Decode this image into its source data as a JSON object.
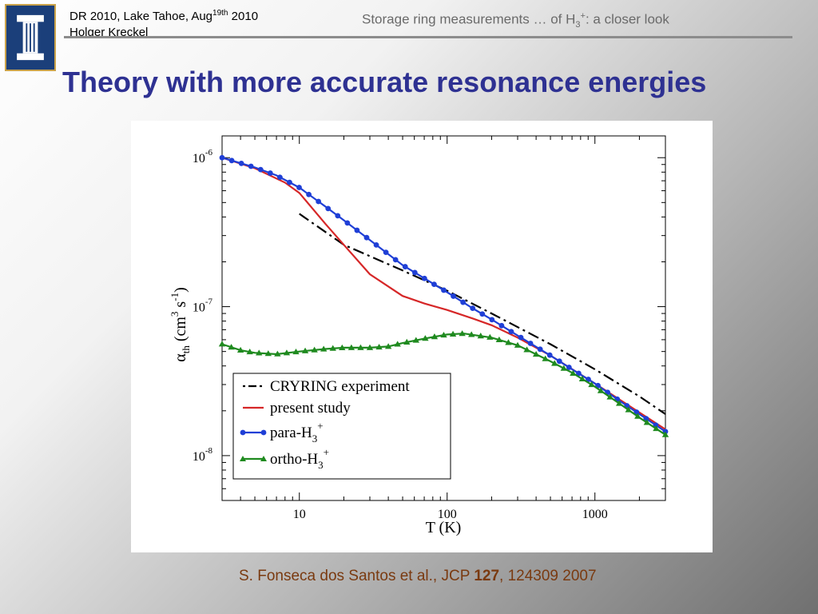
{
  "header": {
    "conference_line": "DR 2010, Lake Tahoe, Aug",
    "conference_sup": "19th",
    "conference_year": " 2010",
    "author": "Holger Kreckel",
    "talk_title_a": "Storage ring measurements … of H",
    "talk_title_sub": "3",
    "talk_title_sup": "+",
    "talk_title_b": ": a closer look",
    "logo_icon": "university-column-logo-icon"
  },
  "slide": {
    "title": "Theory with more accurate resonance energies"
  },
  "citation": {
    "authors": "S. Fonseca dos Santos et al., JCP ",
    "volume": "127",
    "rest": ", 124309 2007"
  },
  "chart_data": {
    "type": "line",
    "xlabel": "T (K)",
    "ylabel_symbol": "α",
    "ylabel_sub": "th",
    "ylabel_units_a": " (cm",
    "ylabel_units_sup1": "3",
    "ylabel_units_b": " s",
    "ylabel_units_sup2": "-1",
    "ylabel_units_c": ")",
    "x_scale": "log",
    "y_scale": "log",
    "xlim": [
      3,
      3000
    ],
    "ylim": [
      5e-09,
      1.4e-06
    ],
    "x_ticks": [
      10,
      100,
      1000
    ],
    "x_tick_labels": [
      "10",
      "100",
      "1000"
    ],
    "y_ticks": [
      1e-08,
      1e-07,
      1e-06
    ],
    "y_tick_base": "10",
    "y_tick_exps": [
      "-8",
      "-7",
      "-6"
    ],
    "legend_position": "bottom-left",
    "series": [
      {
        "name": "CRYRING experiment",
        "color": "#000000",
        "style": "dash-dot",
        "marker": "none",
        "x": [
          10,
          20,
          50,
          100,
          200,
          500,
          1000,
          2000,
          3000
        ],
        "y": [
          4.2e-07,
          2.6e-07,
          1.75e-07,
          1.28e-07,
          9e-08,
          5.6e-08,
          3.8e-08,
          2.5e-08,
          1.9e-08
        ]
      },
      {
        "name": "present study",
        "color": "#d62728",
        "style": "solid",
        "marker": "none",
        "x": [
          3,
          5,
          8,
          10,
          15,
          20,
          30,
          50,
          70,
          100,
          150,
          200,
          300,
          500,
          1000,
          2000,
          3000
        ],
        "y": [
          1e-06,
          8.5e-07,
          6.8e-07,
          5.8e-07,
          3.6e-07,
          2.6e-07,
          1.65e-07,
          1.18e-07,
          1.05e-07,
          9.5e-08,
          8.3e-08,
          7.5e-08,
          6.2e-08,
          4.7e-08,
          3.05e-08,
          1.95e-08,
          1.5e-08
        ]
      },
      {
        "name": "para-H₃⁺",
        "label_base": "para-H",
        "label_sub": "3",
        "label_sup": "+",
        "color": "#1f3fd6",
        "style": "solid",
        "marker": "circle",
        "x": [
          3,
          5,
          7,
          10,
          15,
          20,
          30,
          50,
          70,
          100,
          150,
          200,
          300,
          500,
          700,
          1000,
          1500,
          2000,
          3000
        ],
        "y": [
          1e-06,
          8.6e-07,
          7.6e-07,
          6.3e-07,
          4.7e-07,
          3.8e-07,
          2.8e-07,
          1.9e-07,
          1.55e-07,
          1.25e-07,
          9.7e-08,
          8.2e-08,
          6.4e-08,
          4.7e-08,
          3.8e-08,
          3.05e-08,
          2.3e-08,
          1.9e-08,
          1.45e-08
        ]
      },
      {
        "name": "ortho-H₃⁺",
        "label_base": "ortho-H",
        "label_sub": "3",
        "label_sup": "+",
        "color": "#1f8a1f",
        "style": "solid",
        "marker": "triangle",
        "x": [
          3,
          4,
          5,
          7,
          10,
          15,
          20,
          30,
          40,
          50,
          70,
          100,
          130,
          200,
          300,
          500,
          700,
          1000,
          1500,
          2000,
          3000
        ],
        "y": [
          5.6e-08,
          5.1e-08,
          4.9e-08,
          4.8e-08,
          5e-08,
          5.2e-08,
          5.3e-08,
          5.3e-08,
          5.4e-08,
          5.7e-08,
          6.1e-08,
          6.5e-08,
          6.6e-08,
          6.2e-08,
          5.5e-08,
          4.3e-08,
          3.6e-08,
          2.9e-08,
          2.2e-08,
          1.8e-08,
          1.38e-08
        ]
      }
    ]
  }
}
